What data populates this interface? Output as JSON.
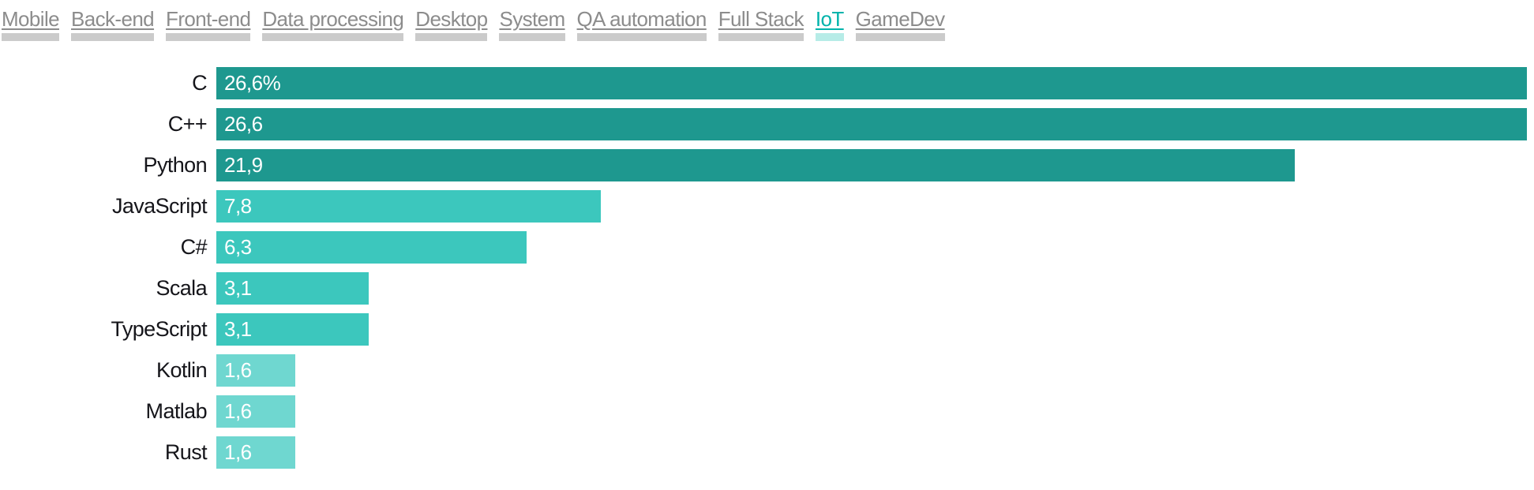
{
  "tabs": {
    "items": [
      {
        "label": "Mobile",
        "active": false
      },
      {
        "label": "Back-end",
        "active": false
      },
      {
        "label": "Front-end",
        "active": false
      },
      {
        "label": "Data processing",
        "active": false
      },
      {
        "label": "Desktop",
        "active": false
      },
      {
        "label": "System",
        "active": false
      },
      {
        "label": "QA automation",
        "active": false
      },
      {
        "label": "Full Stack",
        "active": false
      },
      {
        "label": "IoT",
        "active": true
      },
      {
        "label": "GameDev",
        "active": false
      }
    ],
    "inactive_text_color": "#8c8c8c",
    "inactive_underline_color": "#cbcbcb",
    "active_text_color": "#00b3ab",
    "active_underline_color": "#b6ece7"
  },
  "chart_data": {
    "type": "bar",
    "orientation": "horizontal",
    "title": "",
    "xlabel": "",
    "ylabel": "",
    "grid": false,
    "legend": false,
    "categories": [
      "C",
      "C++",
      "Python",
      "JavaScript",
      "C#",
      "Scala",
      "TypeScript",
      "Kotlin",
      "Matlab",
      "Rust"
    ],
    "values": [
      26.6,
      26.6,
      21.9,
      7.8,
      6.3,
      3.1,
      3.1,
      1.6,
      1.6,
      1.6
    ],
    "value_labels": [
      "26,6%",
      "26,6",
      "21,9",
      "7,8",
      "6,3",
      "3,1",
      "3,1",
      "1,6",
      "1,6",
      "1,6"
    ],
    "bar_colors": [
      "#1e988f",
      "#1e988f",
      "#1e988f",
      "#3cc7bd",
      "#3cc7bd",
      "#3cc7bd",
      "#3cc7bd",
      "#6fd7d0",
      "#6fd7d0",
      "#6fd7d0"
    ],
    "xlim": [
      0,
      26.75
    ],
    "category_text_color": "#15151a",
    "value_text_color": "#ffffff"
  }
}
